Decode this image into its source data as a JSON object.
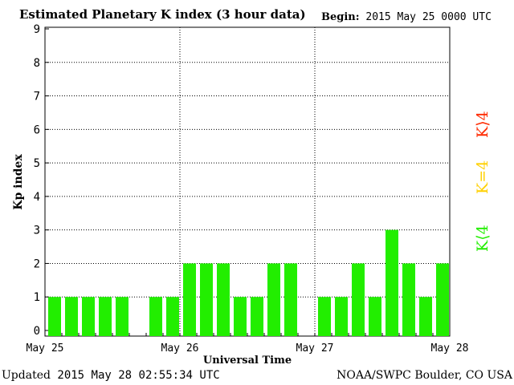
{
  "header": {
    "title": "Estimated Planetary K index (3 hour data)",
    "begin_label": "Begin:",
    "begin_value": "2015 May 25 0000 UTC"
  },
  "footer": {
    "updated_label": "Updated",
    "updated_value": "2015 May 28 02:55:34 UTC",
    "source": "NOAA/SWPC Boulder, CO USA"
  },
  "legend": [
    {
      "label": "K>4",
      "color": "#ff2a00"
    },
    {
      "label": "K=4",
      "color": "#ffd000"
    },
    {
      "label": "K<4",
      "color": "#22ee00"
    }
  ],
  "chart_data": {
    "type": "bar",
    "title": "Estimated Planetary K index (3 hour data)",
    "xlabel": "Universal Time",
    "ylabel": "Kp index",
    "ylim": [
      0,
      9
    ],
    "yticks": [
      "0",
      "1",
      "2",
      "3",
      "4",
      "5",
      "6",
      "7",
      "8",
      "9"
    ],
    "x_tick_labels": [
      "May 25",
      "May 26",
      "May 27",
      "May 28"
    ],
    "slots_per_day": 8,
    "days": 3,
    "values": [
      1,
      1,
      1,
      1,
      1,
      null,
      1,
      1,
      2,
      2,
      2,
      1,
      1,
      2,
      2,
      null,
      1,
      1,
      2,
      1,
      3,
      2,
      1,
      2
    ],
    "bar_color": "#22ee00",
    "grid": "dotted"
  }
}
